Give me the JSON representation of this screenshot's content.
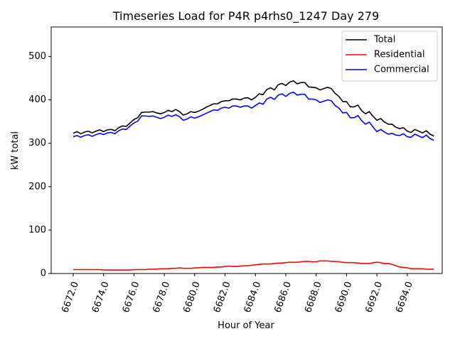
{
  "chart_data": {
    "type": "line",
    "title": "Timeseries Load for P4R p4rhs0_1247  Day 279",
    "xlabel": "Hour of Year",
    "ylabel": "kW total",
    "xlim": [
      6670.55,
      6696.3
    ],
    "ylim": [
      0,
      568
    ],
    "xticks": [
      6672,
      6674,
      6676,
      6678,
      6680,
      6682,
      6684,
      6686,
      6688,
      6690,
      6692,
      6694
    ],
    "xtick_labels": [
      "6672.0",
      "6674.0",
      "6676.0",
      "6678.0",
      "6680.0",
      "6682.0",
      "6684.0",
      "6686.0",
      "6688.0",
      "6690.0",
      "6692.0",
      "6694.0"
    ],
    "yticks": [
      0,
      100,
      200,
      300,
      400,
      500
    ],
    "ytick_labels": [
      "0",
      "100",
      "200",
      "300",
      "400",
      "500"
    ],
    "legend_position": "top-right",
    "x": [
      6672.0,
      6672.25,
      6672.5,
      6672.75,
      6673.0,
      6673.25,
      6673.5,
      6673.75,
      6674.0,
      6674.25,
      6674.5,
      6674.75,
      6675.0,
      6675.25,
      6675.5,
      6675.75,
      6676.0,
      6676.25,
      6676.5,
      6676.75,
      6677.0,
      6677.25,
      6677.5,
      6677.75,
      6678.0,
      6678.25,
      6678.5,
      6678.75,
      6679.0,
      6679.25,
      6679.5,
      6679.75,
      6680.0,
      6680.25,
      6680.5,
      6680.75,
      6681.0,
      6681.25,
      6681.5,
      6681.75,
      6682.0,
      6682.25,
      6682.5,
      6682.75,
      6683.0,
      6683.25,
      6683.5,
      6683.75,
      6684.0,
      6684.25,
      6684.5,
      6684.75,
      6685.0,
      6685.25,
      6685.5,
      6685.75,
      6686.0,
      6686.25,
      6686.5,
      6686.75,
      6687.0,
      6687.25,
      6687.5,
      6687.75,
      6688.0,
      6688.25,
      6688.5,
      6688.75,
      6689.0,
      6689.25,
      6689.5,
      6689.75,
      6690.0,
      6690.25,
      6690.5,
      6690.75,
      6691.0,
      6691.25,
      6691.5,
      6691.75,
      6692.0,
      6692.25,
      6692.5,
      6692.75,
      6693.0,
      6693.25,
      6693.5,
      6693.75,
      6694.0,
      6694.25,
      6694.5,
      6694.75,
      6695.0,
      6695.25,
      6695.5,
      6695.75
    ],
    "series": [
      {
        "name": "Total",
        "color": "#000000",
        "values": [
          323,
          327,
          322,
          326,
          328,
          324,
          328,
          331,
          327,
          331,
          332,
          329,
          336,
          340,
          339,
          347,
          355,
          359,
          371,
          372,
          372,
          373,
          370,
          368,
          371,
          376,
          373,
          378,
          373,
          365,
          368,
          373,
          371,
          374,
          378,
          383,
          387,
          391,
          391,
          396,
          398,
          398,
          402,
          402,
          400,
          404,
          405,
          400,
          406,
          414,
          412,
          424,
          428,
          423,
          435,
          438,
          433,
          441,
          444,
          437,
          440,
          440,
          430,
          429,
          428,
          423,
          426,
          429,
          426,
          415,
          408,
          396,
          396,
          384,
          384,
          388,
          375,
          368,
          373,
          362,
          353,
          357,
          349,
          344,
          344,
          337,
          334,
          336,
          328,
          325,
          332,
          328,
          324,
          329,
          321,
          317
        ]
      },
      {
        "name": "Residential",
        "color": "#ff0000",
        "values": [
          9,
          9,
          9,
          9,
          9,
          9,
          9,
          9,
          8,
          8,
          8,
          8,
          8,
          8,
          8,
          8,
          9,
          9,
          9,
          9,
          10,
          10,
          10,
          11,
          11,
          11,
          12,
          12,
          13,
          12,
          12,
          12,
          13,
          13,
          14,
          14,
          14,
          14,
          15,
          15,
          16,
          17,
          16,
          16,
          17,
          18,
          18,
          19,
          20,
          21,
          22,
          22,
          22,
          23,
          24,
          24,
          25,
          26,
          26,
          26,
          27,
          28,
          28,
          27,
          27,
          29,
          29,
          29,
          28,
          28,
          27,
          26,
          25,
          25,
          25,
          24,
          23,
          23,
          23,
          25,
          26,
          25,
          23,
          23,
          21,
          18,
          15,
          14,
          13,
          11,
          11,
          11,
          11,
          10,
          10,
          10
        ]
      },
      {
        "name": "Commercial",
        "color": "#0000ff",
        "values": [
          315,
          318,
          314,
          318,
          320,
          316,
          320,
          323,
          320,
          324,
          325,
          322,
          329,
          333,
          332,
          340,
          347,
          351,
          363,
          363,
          362,
          363,
          360,
          357,
          360,
          365,
          362,
          366,
          361,
          353,
          356,
          361,
          358,
          361,
          365,
          369,
          373,
          377,
          376,
          381,
          383,
          381,
          386,
          386,
          383,
          386,
          386,
          381,
          387,
          393,
          390,
          402,
          406,
          401,
          411,
          414,
          408,
          415,
          418,
          411,
          413,
          413,
          402,
          402,
          400,
          394,
          397,
          400,
          398,
          387,
          381,
          370,
          371,
          359,
          359,
          364,
          352,
          344,
          349,
          337,
          327,
          332,
          326,
          321,
          323,
          319,
          318,
          322,
          315,
          314,
          321,
          317,
          313,
          319,
          311,
          307
        ]
      }
    ]
  }
}
